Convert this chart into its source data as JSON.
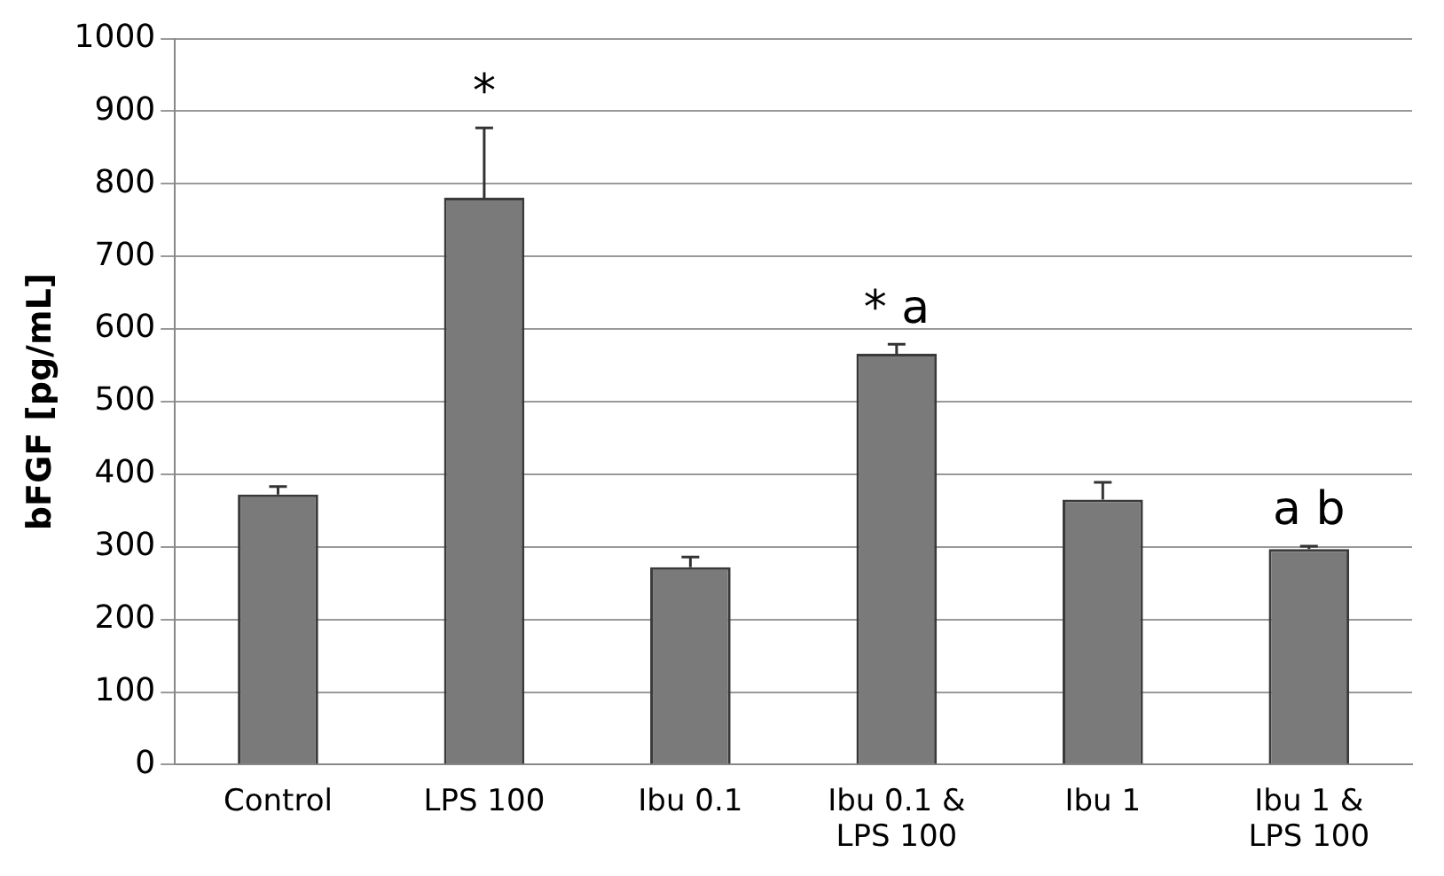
{
  "chart_data": {
    "type": "bar",
    "ylabel": "bFGF [pg/mL]",
    "categories": [
      "Control",
      "LPS 100",
      "Ibu 0.1",
      "Ibu 0.1 &\nLPS 100",
      "Ibu 1",
      "Ibu 1 &\nLPS 100"
    ],
    "values": [
      372,
      781,
      272,
      566,
      365,
      297
    ],
    "errors": [
      [
        372,
        383
      ],
      [
        781,
        877
      ],
      [
        272,
        286
      ],
      [
        566,
        579
      ],
      [
        365,
        389
      ],
      [
        297,
        301
      ]
    ],
    "color": "#7a7a7a",
    "ylim": [
      0,
      1000
    ],
    "yticks": [
      0,
      100,
      200,
      300,
      400,
      500,
      600,
      700,
      800,
      900,
      1000
    ],
    "grid": "y",
    "annotations": [
      {
        "text": "*",
        "x": "LPS 100",
        "y": 877
      },
      {
        "text": "* a",
        "x": "Ibu 0.1 &\nLPS 100",
        "y": 579
      },
      {
        "text": "a b",
        "x": "Ibu 1 &\nLPS 100",
        "y": 301
      }
    ]
  }
}
